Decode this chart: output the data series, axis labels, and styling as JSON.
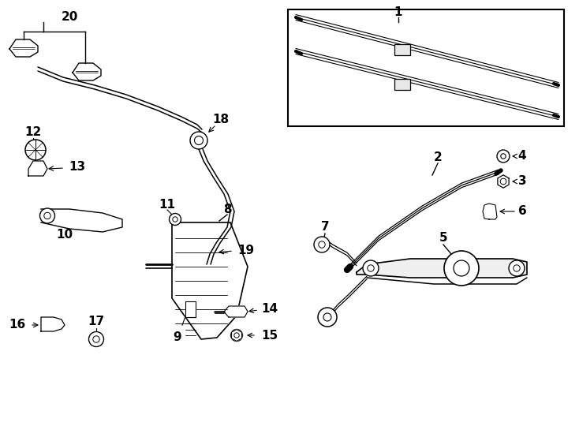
{
  "bg_color": "#ffffff",
  "line_color": "#000000",
  "fig_width": 7.34,
  "fig_height": 5.4,
  "dpi": 100
}
